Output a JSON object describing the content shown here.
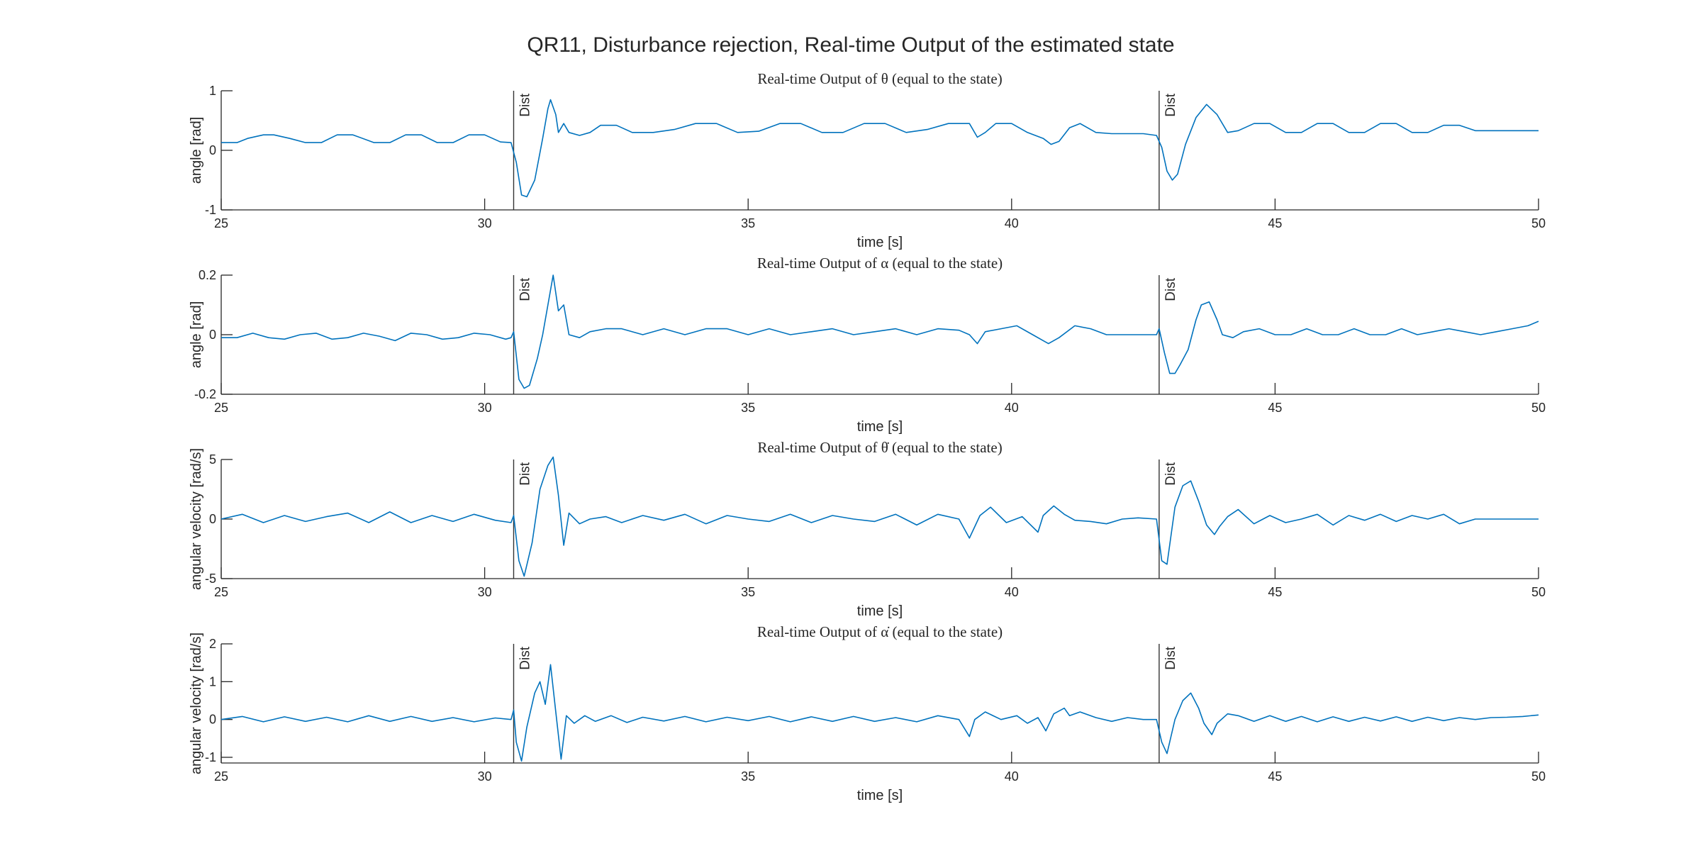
{
  "figure": {
    "title": "QR11, Disturbance rejection, Real-time Output of the estimated state",
    "line_color": "#0072BD"
  },
  "chart_data": [
    {
      "type": "line",
      "title": "Real-time Output of θ (equal to the state)",
      "xlabel": "time [s]",
      "ylabel": "angle [rad]",
      "xlim": [
        25,
        50
      ],
      "ylim": [
        -1,
        1
      ],
      "xticks": [
        25,
        30,
        35,
        40,
        45,
        50
      ],
      "yticks": [
        -1,
        0,
        1
      ],
      "grid": false,
      "annotations": [
        {
          "x": 30.55,
          "text": "Dist"
        },
        {
          "x": 42.8,
          "text": "Dist"
        }
      ],
      "series": [
        {
          "x": [
            25,
            25.3,
            25.5,
            25.8,
            26,
            26.3,
            26.6,
            26.9,
            27.2,
            27.5,
            27.9,
            28.2,
            28.5,
            28.8,
            29.1,
            29.4,
            29.7,
            30,
            30.3,
            30.5,
            30.6,
            30.7,
            30.8,
            30.95,
            31.1,
            31.2,
            31.25,
            31.35,
            31.4,
            31.5,
            31.6,
            31.8,
            32,
            32.2,
            32.5,
            32.8,
            33.2,
            33.6,
            34,
            34.4,
            34.8,
            35.2,
            35.6,
            36,
            36.4,
            36.8,
            37.2,
            37.6,
            38,
            38.4,
            38.8,
            39.2,
            39.35,
            39.5,
            39.7,
            40,
            40.3,
            40.6,
            40.75,
            40.9,
            41.1,
            41.3,
            41.6,
            41.9,
            42.2,
            42.5,
            42.75,
            42.85,
            42.95,
            43.05,
            43.15,
            43.3,
            43.5,
            43.7,
            43.9,
            44.1,
            44.3,
            44.6,
            44.9,
            45.2,
            45.5,
            45.8,
            46.1,
            46.4,
            46.7,
            47,
            47.3,
            47.6,
            47.9,
            48.2,
            48.5,
            48.8,
            49.1,
            49.4,
            49.7,
            50
          ],
          "y": [
            0.13,
            0.13,
            0.2,
            0.26,
            0.26,
            0.2,
            0.13,
            0.13,
            0.26,
            0.26,
            0.13,
            0.13,
            0.26,
            0.26,
            0.13,
            0.13,
            0.26,
            0.26,
            0.14,
            0.13,
            -0.2,
            -0.75,
            -0.78,
            -0.5,
            0.2,
            0.7,
            0.85,
            0.6,
            0.3,
            0.45,
            0.3,
            0.25,
            0.3,
            0.42,
            0.42,
            0.3,
            0.3,
            0.35,
            0.45,
            0.45,
            0.3,
            0.32,
            0.45,
            0.45,
            0.3,
            0.3,
            0.45,
            0.45,
            0.3,
            0.35,
            0.45,
            0.45,
            0.22,
            0.3,
            0.45,
            0.45,
            0.3,
            0.2,
            0.1,
            0.15,
            0.38,
            0.45,
            0.3,
            0.28,
            0.28,
            0.28,
            0.25,
            0.05,
            -0.35,
            -0.5,
            -0.4,
            0.1,
            0.55,
            0.77,
            0.6,
            0.3,
            0.33,
            0.45,
            0.45,
            0.3,
            0.3,
            0.45,
            0.45,
            0.3,
            0.3,
            0.45,
            0.45,
            0.3,
            0.3,
            0.42,
            0.42,
            0.33,
            0.33,
            0.33,
            0.33,
            0.33
          ]
        }
      ]
    },
    {
      "type": "line",
      "title": "Real-time Output of α (equal to the state)",
      "xlabel": "time [s]",
      "ylabel": "angle [rad]",
      "xlim": [
        25,
        50
      ],
      "ylim": [
        -0.2,
        0.2
      ],
      "xticks": [
        25,
        30,
        35,
        40,
        45,
        50
      ],
      "yticks": [
        -0.2,
        0,
        0.2
      ],
      "grid": false,
      "annotations": [
        {
          "x": 30.55,
          "text": "Dist"
        },
        {
          "x": 42.8,
          "text": "Dist"
        }
      ],
      "series": [
        {
          "x": [
            25,
            25.3,
            25.6,
            25.9,
            26.2,
            26.5,
            26.8,
            27.1,
            27.4,
            27.7,
            28,
            28.3,
            28.6,
            28.9,
            29.2,
            29.5,
            29.8,
            30.1,
            30.4,
            30.5,
            30.55,
            30.65,
            30.75,
            30.85,
            31,
            31.1,
            31.2,
            31.3,
            31.4,
            31.5,
            31.6,
            31.8,
            32,
            32.3,
            32.6,
            33,
            33.4,
            33.8,
            34.2,
            34.6,
            35,
            35.4,
            35.8,
            36.2,
            36.6,
            37,
            37.4,
            37.8,
            38.2,
            38.6,
            39,
            39.2,
            39.35,
            39.5,
            39.8,
            40.1,
            40.4,
            40.6,
            40.7,
            40.9,
            41.2,
            41.5,
            41.8,
            42.1,
            42.4,
            42.75,
            42.8,
            42.9,
            43,
            43.1,
            43.2,
            43.35,
            43.5,
            43.6,
            43.75,
            43.9,
            44,
            44.2,
            44.4,
            44.7,
            45,
            45.3,
            45.6,
            45.9,
            46.2,
            46.5,
            46.8,
            47.1,
            47.4,
            47.7,
            48,
            48.3,
            48.6,
            48.9,
            49.2,
            49.5,
            49.8,
            50
          ],
          "y": [
            -0.01,
            -0.01,
            0.005,
            -0.01,
            -0.015,
            0.0,
            0.005,
            -0.015,
            -0.01,
            0.005,
            -0.005,
            -0.02,
            0.005,
            0.0,
            -0.015,
            -0.01,
            0.005,
            0.0,
            -0.015,
            -0.01,
            0.01,
            -0.15,
            -0.18,
            -0.17,
            -0.08,
            0.0,
            0.1,
            0.2,
            0.08,
            0.1,
            0.0,
            -0.01,
            0.01,
            0.02,
            0.02,
            0.0,
            0.02,
            0.0,
            0.02,
            0.02,
            0.0,
            0.02,
            0.0,
            0.01,
            0.02,
            0.0,
            0.01,
            0.02,
            0.0,
            0.02,
            0.015,
            0.0,
            -0.03,
            0.01,
            0.02,
            0.03,
            0.0,
            -0.02,
            -0.03,
            -0.01,
            0.03,
            0.02,
            0.0,
            0.0,
            0.0,
            0.0,
            0.02,
            -0.06,
            -0.13,
            -0.13,
            -0.1,
            -0.05,
            0.05,
            0.1,
            0.11,
            0.05,
            0.0,
            -0.01,
            0.01,
            0.02,
            0.0,
            0.0,
            0.02,
            0.0,
            0.0,
            0.02,
            0.0,
            0.0,
            0.02,
            0.0,
            0.01,
            0.02,
            0.01,
            0.0,
            0.01,
            0.02,
            0.03,
            0.045
          ]
        }
      ]
    },
    {
      "type": "line",
      "title": "Real-time Output of θ̇ (equal to the state)",
      "xlabel": "time [s]",
      "ylabel": "angular velocity [rad/s]",
      "xlim": [
        25,
        50
      ],
      "ylim": [
        -5,
        5
      ],
      "xticks": [
        25,
        30,
        35,
        40,
        45,
        50
      ],
      "yticks": [
        -5,
        0,
        5
      ],
      "grid": false,
      "annotations": [
        {
          "x": 30.55,
          "text": "Dist"
        },
        {
          "x": 42.8,
          "text": "Dist"
        }
      ],
      "series": [
        {
          "x": [
            25,
            25.4,
            25.8,
            26.2,
            26.6,
            27,
            27.4,
            27.8,
            28.2,
            28.6,
            29,
            29.4,
            29.8,
            30.2,
            30.5,
            30.55,
            30.65,
            30.75,
            30.9,
            31.05,
            31.2,
            31.3,
            31.4,
            31.5,
            31.6,
            31.8,
            32,
            32.3,
            32.6,
            33,
            33.4,
            33.8,
            34.2,
            34.6,
            35,
            35.4,
            35.8,
            36.2,
            36.6,
            37,
            37.4,
            37.8,
            38.2,
            38.6,
            39,
            39.2,
            39.4,
            39.6,
            39.9,
            40.2,
            40.5,
            40.6,
            40.8,
            41,
            41.2,
            41.5,
            41.8,
            42.1,
            42.4,
            42.75,
            42.85,
            42.95,
            43.1,
            43.25,
            43.4,
            43.55,
            43.7,
            43.85,
            43.95,
            44.1,
            44.3,
            44.6,
            44.9,
            45.2,
            45.5,
            45.8,
            46.1,
            46.4,
            46.7,
            47,
            47.3,
            47.6,
            47.9,
            48.2,
            48.5,
            48.8,
            49.1,
            49.4,
            49.7,
            50
          ],
          "y": [
            0.0,
            0.4,
            -0.3,
            0.3,
            -0.2,
            0.2,
            0.5,
            -0.3,
            0.6,
            -0.3,
            0.3,
            -0.2,
            0.4,
            -0.1,
            -0.3,
            0.3,
            -3.5,
            -4.8,
            -2.0,
            2.5,
            4.5,
            5.2,
            2.0,
            -2.2,
            0.5,
            -0.4,
            0.0,
            0.2,
            -0.3,
            0.3,
            -0.1,
            0.4,
            -0.4,
            0.3,
            0.0,
            -0.2,
            0.4,
            -0.3,
            0.3,
            0.0,
            -0.2,
            0.4,
            -0.5,
            0.4,
            0.0,
            -1.6,
            0.3,
            1.0,
            -0.3,
            0.2,
            -1.1,
            0.3,
            1.1,
            0.4,
            -0.1,
            -0.2,
            -0.4,
            0.0,
            0.1,
            0.0,
            -3.5,
            -3.8,
            1.0,
            2.8,
            3.2,
            1.5,
            -0.5,
            -1.3,
            -0.6,
            0.2,
            0.8,
            -0.4,
            0.3,
            -0.3,
            0.0,
            0.4,
            -0.5,
            0.3,
            -0.1,
            0.4,
            -0.2,
            0.3,
            0.0,
            0.4,
            -0.4,
            0.0,
            0.0,
            0.0,
            0.0,
            0.0
          ]
        }
      ]
    },
    {
      "type": "line",
      "title": "Real-time Output of α̇ (equal to the state)",
      "xlabel": "time [s]",
      "ylabel": "angular velocity [rad/s]",
      "xlim": [
        25,
        50
      ],
      "ylim": [
        -1.15,
        2
      ],
      "xticks": [
        25,
        30,
        35,
        40,
        45,
        50
      ],
      "yticks": [
        -1,
        0,
        1,
        2
      ],
      "grid": false,
      "annotations": [
        {
          "x": 30.55,
          "text": "Dist"
        },
        {
          "x": 42.8,
          "text": "Dist"
        }
      ],
      "series": [
        {
          "x": [
            25,
            25.4,
            25.8,
            26.2,
            26.6,
            27,
            27.4,
            27.8,
            28.2,
            28.6,
            29,
            29.4,
            29.8,
            30.2,
            30.5,
            30.55,
            30.6,
            30.7,
            30.8,
            30.95,
            31.05,
            31.15,
            31.25,
            31.35,
            31.45,
            31.55,
            31.7,
            31.9,
            32.1,
            32.4,
            32.7,
            33,
            33.4,
            33.8,
            34.2,
            34.6,
            35,
            35.4,
            35.8,
            36.2,
            36.6,
            37,
            37.4,
            37.8,
            38.2,
            38.6,
            39,
            39.2,
            39.3,
            39.5,
            39.8,
            40.1,
            40.3,
            40.5,
            40.65,
            40.8,
            41,
            41.1,
            41.3,
            41.6,
            41.9,
            42.2,
            42.5,
            42.75,
            42.85,
            42.95,
            43.1,
            43.25,
            43.4,
            43.55,
            43.65,
            43.8,
            43.9,
            44.1,
            44.3,
            44.6,
            44.9,
            45.2,
            45.5,
            45.8,
            46.1,
            46.4,
            46.7,
            47,
            47.3,
            47.6,
            47.9,
            48.2,
            48.5,
            48.8,
            49.1,
            49.4,
            49.7,
            50
          ],
          "y": [
            0.0,
            0.08,
            -0.06,
            0.07,
            -0.05,
            0.06,
            -0.06,
            0.1,
            -0.05,
            0.08,
            -0.05,
            0.05,
            -0.06,
            0.04,
            0.0,
            0.25,
            -0.6,
            -1.1,
            -0.2,
            0.7,
            1.0,
            0.4,
            1.45,
            0.2,
            -1.05,
            0.1,
            -0.1,
            0.1,
            -0.05,
            0.1,
            -0.08,
            0.06,
            -0.04,
            0.08,
            -0.06,
            0.06,
            -0.03,
            0.08,
            -0.06,
            0.07,
            -0.05,
            0.08,
            -0.05,
            0.05,
            -0.06,
            0.1,
            0.0,
            -0.45,
            0.0,
            0.2,
            0.0,
            0.1,
            -0.1,
            0.05,
            -0.3,
            0.15,
            0.3,
            0.1,
            0.2,
            0.05,
            -0.05,
            0.05,
            0.0,
            0.0,
            -0.6,
            -0.9,
            0.0,
            0.5,
            0.7,
            0.3,
            -0.1,
            -0.4,
            -0.1,
            0.15,
            0.1,
            -0.05,
            0.1,
            -0.05,
            0.08,
            -0.06,
            0.07,
            -0.05,
            0.06,
            -0.04,
            0.07,
            -0.05,
            0.06,
            -0.03,
            0.05,
            0.0,
            0.05,
            0.06,
            0.08,
            0.12
          ]
        }
      ]
    }
  ]
}
